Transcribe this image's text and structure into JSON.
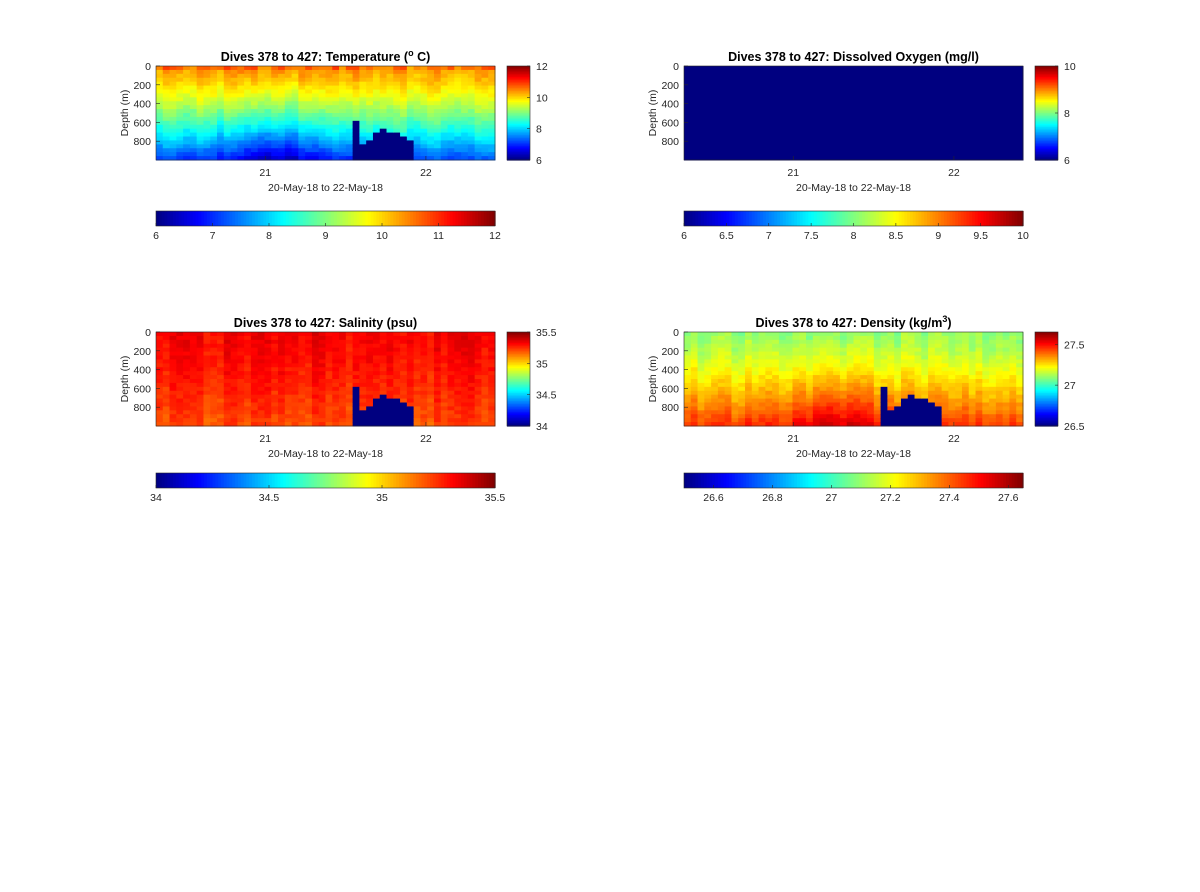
{
  "figure": {
    "background": "#ffffff",
    "colormap": "jet",
    "xlabel": "20-May-18 to 22-May-18"
  },
  "chart_data": [
    {
      "type": "heatmap",
      "id": "temperature",
      "title": "Dives 378 to 427: Temperature (",
      "title_sup": "o",
      "title_tail": " C)",
      "xlabel": "20-May-18 to 22-May-18",
      "ylabel": "Depth (m)",
      "x_ticks": [
        "21",
        "22"
      ],
      "y_ticks": [
        "0",
        "200",
        "400",
        "600",
        "800"
      ],
      "ylim": [
        0,
        1000
      ],
      "x_range_days": [
        20.32,
        22.43
      ],
      "clim": [
        6,
        12
      ],
      "colorbar_ticks": [
        "12",
        "10",
        "8",
        "6"
      ],
      "hcolorbar_ticks": [
        "6",
        "7",
        "8",
        "9",
        "10",
        "11",
        "12"
      ],
      "surface_mean": 10.4,
      "bottom_mean": 7.2,
      "no_data_value": 6,
      "no_data_depths_m": [
        600,
        850,
        800,
        720,
        680,
        700,
        720,
        760,
        800
      ]
    },
    {
      "type": "heatmap",
      "id": "oxygen",
      "title": "Dives 378 to 427: Dissolved Oxygen (mg/l)",
      "xlabel": "20-May-18 to 22-May-18",
      "ylabel": "Depth (m)",
      "x_ticks": [
        "21",
        "22"
      ],
      "y_ticks": [
        "0",
        "200",
        "400",
        "600",
        "800"
      ],
      "ylim": [
        0,
        1000
      ],
      "x_range_days": [
        20.32,
        22.43
      ],
      "clim": [
        6,
        10
      ],
      "colorbar_ticks": [
        "10",
        "8",
        "6"
      ],
      "hcolorbar_ticks": [
        "6",
        "6.5",
        "7",
        "7.5",
        "8",
        "8.5",
        "9",
        "9.5",
        "10"
      ],
      "uniform_value": 6
    },
    {
      "type": "heatmap",
      "id": "salinity",
      "title": "Dives 378 to 427: Salinity (psu)",
      "xlabel": "20-May-18 to 22-May-18",
      "ylabel": "Depth (m)",
      "x_ticks": [
        "21",
        "22"
      ],
      "y_ticks": [
        "0",
        "200",
        "400",
        "600",
        "800"
      ],
      "ylim": [
        0,
        1000
      ],
      "x_range_days": [
        20.32,
        22.43
      ],
      "clim": [
        34,
        35.5
      ],
      "colorbar_ticks": [
        "35.5",
        "35",
        "34.5",
        "34"
      ],
      "hcolorbar_ticks": [
        "34",
        "34.5",
        "35",
        "35.5"
      ],
      "surface_mean": 35.32,
      "bottom_mean": 35.2,
      "no_data_value": 34,
      "no_data_depths_m": [
        600,
        850,
        800,
        720,
        680,
        700,
        720,
        760,
        800
      ]
    },
    {
      "type": "heatmap",
      "id": "density",
      "title": "Dives 378 to 427: Density (kg/m",
      "title_sup": "3",
      "title_tail": ")",
      "xlabel": "20-May-18 to 22-May-18",
      "ylabel": "Depth (m)",
      "x_ticks": [
        "21",
        "22"
      ],
      "y_ticks": [
        "0",
        "200",
        "400",
        "600",
        "800"
      ],
      "ylim": [
        0,
        1000
      ],
      "x_range_days": [
        20.32,
        22.43
      ],
      "clim": [
        26.5,
        27.65
      ],
      "colorbar_ticks": [
        "27.5",
        "27",
        "26.5"
      ],
      "hcolorbar_ticks": [
        "26.6",
        "26.8",
        "27",
        "27.2",
        "27.4",
        "27.6"
      ],
      "surface_mean": 27.1,
      "bottom_mean": 27.45,
      "no_data_value": 26.5,
      "no_data_depths_m": [
        600,
        850,
        800,
        720,
        680,
        700,
        720,
        760,
        800
      ]
    }
  ]
}
